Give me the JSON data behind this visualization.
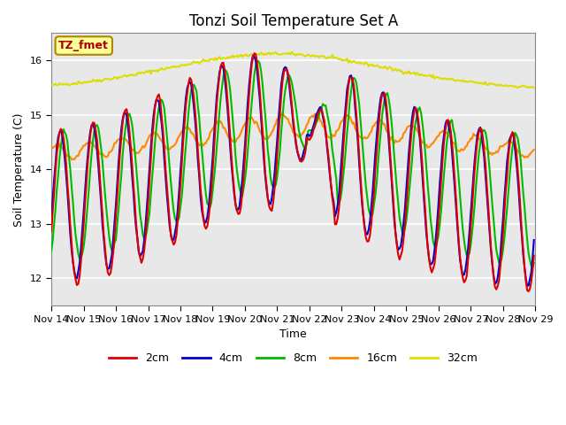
{
  "title": "Tonzi Soil Temperature Set A",
  "xlabel": "Time",
  "ylabel": "Soil Temperature (C)",
  "ylim": [
    11.5,
    16.5
  ],
  "xlim": [
    0,
    360
  ],
  "x_tick_labels": [
    "Nov 14",
    "Nov 15",
    "Nov 16",
    "Nov 17",
    "Nov 18",
    "Nov 19",
    "Nov 20",
    "Nov 21",
    "Nov 22",
    "Nov 23",
    "Nov 24",
    "Nov 25",
    "Nov 26",
    "Nov 27",
    "Nov 28",
    "Nov 29"
  ],
  "x_tick_positions": [
    0,
    24,
    48,
    72,
    96,
    120,
    144,
    168,
    192,
    216,
    240,
    264,
    288,
    312,
    336,
    360
  ],
  "colors": {
    "2cm": "#dd0000",
    "4cm": "#0000cc",
    "8cm": "#00bb00",
    "16cm": "#ff8800",
    "32cm": "#dddd00"
  },
  "background_color": "#e8e8e8",
  "legend_box_color": "#ffff99",
  "legend_box_edge": "#aa8800",
  "title_fontsize": 12,
  "label_fontsize": 9,
  "tick_fontsize": 8
}
